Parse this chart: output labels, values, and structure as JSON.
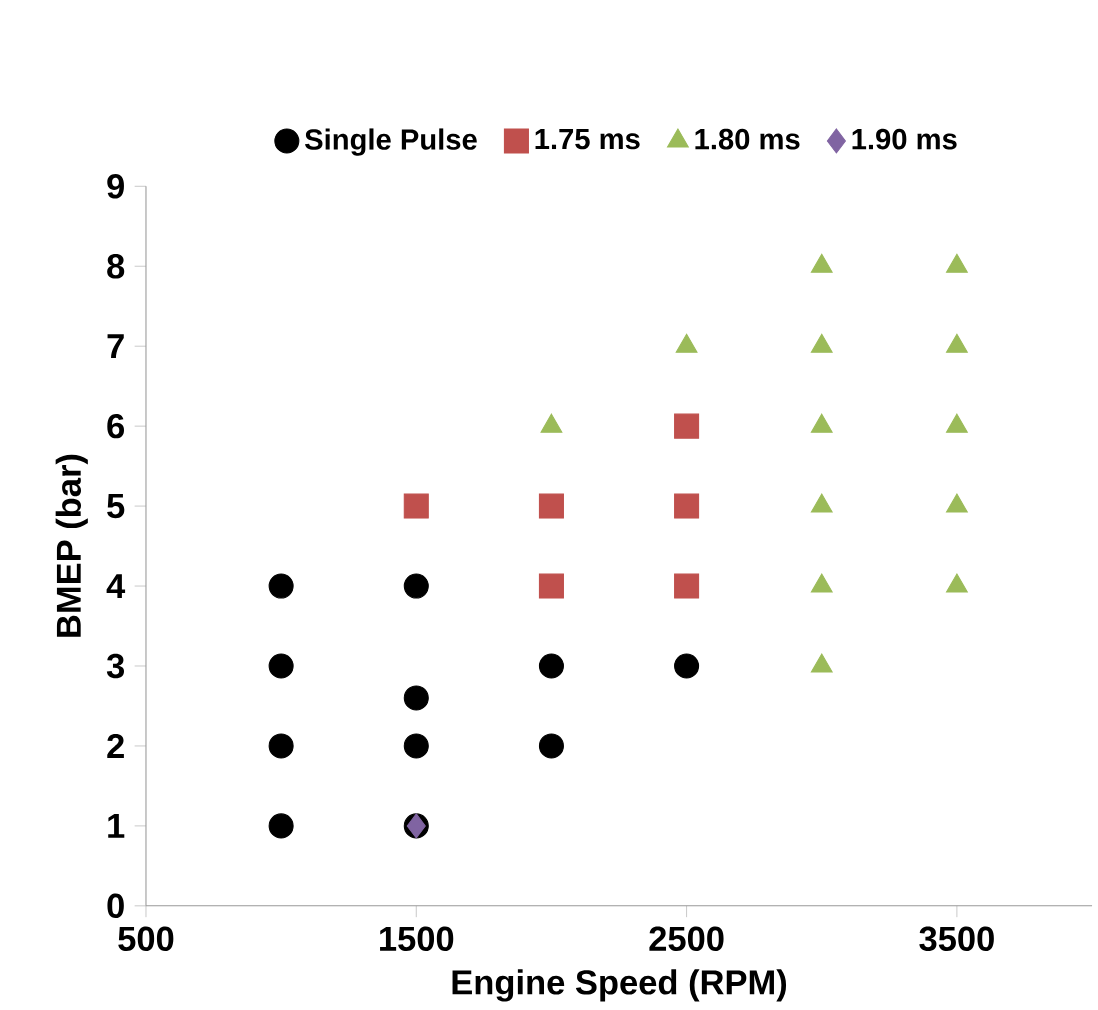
{
  "chart_data": {
    "type": "scatter",
    "xlabel": "Engine Speed (RPM)",
    "ylabel": "BMEP (bar)",
    "xlim": [
      500,
      4000
    ],
    "xticks": [
      500,
      1500,
      2500,
      3500
    ],
    "ylim": [
      0,
      9
    ],
    "yticks": [
      0,
      1,
      2,
      3,
      4,
      5,
      6,
      7,
      8,
      9
    ],
    "legend": "top",
    "grid": false,
    "series": [
      {
        "name": "Single Pulse",
        "color": "#000000",
        "marker": "circle",
        "x": [
          1000,
          1000,
          1000,
          1000,
          1500,
          1500,
          1500,
          1500,
          2000,
          2000,
          2500
        ],
        "values": [
          1,
          2,
          3,
          4,
          1,
          2,
          2.6,
          4,
          2,
          3,
          3
        ]
      },
      {
        "name": "1.75 ms",
        "color": "#c0504d",
        "marker": "square",
        "x": [
          1500,
          2000,
          2000,
          2500,
          2500,
          2500
        ],
        "values": [
          5,
          4,
          5,
          4,
          5,
          6
        ]
      },
      {
        "name": "1.80 ms",
        "color": "#9bbb59",
        "marker": "triangle",
        "x": [
          2000,
          2500,
          3000,
          3000,
          3000,
          3000,
          3000,
          3000,
          3500,
          3500,
          3500,
          3500,
          3500
        ],
        "values": [
          6,
          7,
          3,
          4,
          5,
          6,
          7,
          8,
          4,
          5,
          6,
          7,
          8
        ]
      },
      {
        "name": "1.90 ms",
        "color": "#8064a2",
        "marker": "diamond",
        "x": [
          1500
        ],
        "values": [
          1
        ]
      }
    ]
  }
}
